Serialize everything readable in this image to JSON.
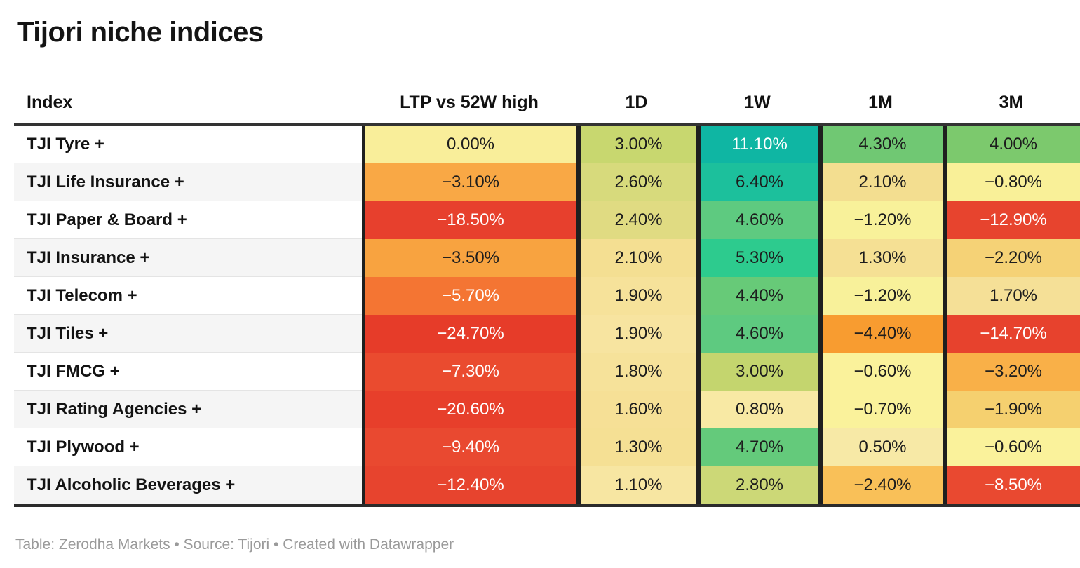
{
  "title": "Tijori niche indices",
  "footer": {
    "text": "Table: Zerodha Markets • Source: Tijori • Created with Datawrapper"
  },
  "table": {
    "columns": [
      "Index",
      "LTP vs 52W high",
      "1D",
      "1W",
      "1M",
      "3M"
    ],
    "rows": [
      {
        "index": "TJI Tyre +",
        "cells": [
          {
            "text": "0.00%",
            "bg": "#f9ee9a"
          },
          {
            "text": "3.00%",
            "bg": "#c8d76f"
          },
          {
            "text": "11.10%",
            "bg": "#0fb6a3",
            "fg": "#ffffff"
          },
          {
            "text": "4.30%",
            "bg": "#70c873"
          },
          {
            "text": "4.00%",
            "bg": "#7cc96d"
          }
        ]
      },
      {
        "index": "TJI Life Insurance +",
        "cells": [
          {
            "text": "−3.10%",
            "bg": "#f9a845"
          },
          {
            "text": "2.60%",
            "bg": "#d7da7c"
          },
          {
            "text": "6.40%",
            "bg": "#1cc09c"
          },
          {
            "text": "2.10%",
            "bg": "#f3de90"
          },
          {
            "text": "−0.80%",
            "bg": "#f9f098"
          }
        ]
      },
      {
        "index": "TJI Paper & Board +",
        "cells": [
          {
            "text": "−18.50%",
            "bg": "#e7402d",
            "fg": "#ffffff"
          },
          {
            "text": "2.40%",
            "bg": "#e0db82"
          },
          {
            "text": "4.60%",
            "bg": "#5eca80"
          },
          {
            "text": "−1.20%",
            "bg": "#f8f19a"
          },
          {
            "text": "−12.90%",
            "bg": "#e7442e",
            "fg": "#ffffff"
          }
        ]
      },
      {
        "index": "TJI Insurance +",
        "cells": [
          {
            "text": "−3.50%",
            "bg": "#f8a340"
          },
          {
            "text": "2.10%",
            "bg": "#f4df92"
          },
          {
            "text": "5.30%",
            "bg": "#2dcb8e"
          },
          {
            "text": "1.30%",
            "bg": "#f5e094"
          },
          {
            "text": "−2.20%",
            "bg": "#f5d276"
          }
        ]
      },
      {
        "index": "TJI Telecom +",
        "cells": [
          {
            "text": "−5.70%",
            "bg": "#f47533",
            "fg": "#ffffff"
          },
          {
            "text": "1.90%",
            "bg": "#f6e29a"
          },
          {
            "text": "4.40%",
            "bg": "#67ca78"
          },
          {
            "text": "−1.20%",
            "bg": "#f8f19a"
          },
          {
            "text": "1.70%",
            "bg": "#f5e097"
          }
        ]
      },
      {
        "index": "TJI Tiles +",
        "cells": [
          {
            "text": "−24.70%",
            "bg": "#e63c29",
            "fg": "#ffffff"
          },
          {
            "text": "1.90%",
            "bg": "#f7e4a0"
          },
          {
            "text": "4.60%",
            "bg": "#5eca80"
          },
          {
            "text": "−4.40%",
            "bg": "#f89c30"
          },
          {
            "text": "−14.70%",
            "bg": "#e7422d",
            "fg": "#ffffff"
          }
        ]
      },
      {
        "index": "TJI FMCG +",
        "cells": [
          {
            "text": "−7.30%",
            "bg": "#ea4b2f",
            "fg": "#ffffff"
          },
          {
            "text": "1.80%",
            "bg": "#f6e29a"
          },
          {
            "text": "3.00%",
            "bg": "#c4d56e"
          },
          {
            "text": "−0.60%",
            "bg": "#faf29b"
          },
          {
            "text": "−3.20%",
            "bg": "#f9b048"
          }
        ]
      },
      {
        "index": "TJI Rating Agencies +",
        "cells": [
          {
            "text": "−20.60%",
            "bg": "#e73f2b",
            "fg": "#ffffff"
          },
          {
            "text": "1.60%",
            "bg": "#f6e096"
          },
          {
            "text": "0.80%",
            "bg": "#f8e9a4"
          },
          {
            "text": "−0.70%",
            "bg": "#faf29b"
          },
          {
            "text": "−1.90%",
            "bg": "#f5d06f"
          }
        ]
      },
      {
        "index": "TJI Plywood +",
        "cells": [
          {
            "text": "−9.40%",
            "bg": "#e94930",
            "fg": "#ffffff"
          },
          {
            "text": "1.30%",
            "bg": "#f5e094"
          },
          {
            "text": "4.70%",
            "bg": "#64ca7b"
          },
          {
            "text": "0.50%",
            "bg": "#f7e9a6"
          },
          {
            "text": "−0.60%",
            "bg": "#faf29b"
          }
        ]
      },
      {
        "index": "TJI Alcoholic Beverages +",
        "cells": [
          {
            "text": "−12.40%",
            "bg": "#e7442e",
            "fg": "#ffffff"
          },
          {
            "text": "1.10%",
            "bg": "#f7e6a2"
          },
          {
            "text": "2.80%",
            "bg": "#ccd877"
          },
          {
            "text": "−2.40%",
            "bg": "#f9c058"
          },
          {
            "text": "−8.50%",
            "bg": "#e94930",
            "fg": "#ffffff"
          }
        ]
      }
    ]
  },
  "chart_data": {
    "type": "table",
    "title": "Tijori niche indices",
    "columns": [
      "Index",
      "LTP vs 52W high",
      "1D",
      "1W",
      "1M",
      "3M"
    ],
    "value_unit": "%",
    "rows": [
      [
        "TJI Tyre +",
        0.0,
        3.0,
        11.1,
        4.3,
        4.0
      ],
      [
        "TJI Life Insurance +",
        -3.1,
        2.6,
        6.4,
        2.1,
        -0.8
      ],
      [
        "TJI Paper & Board +",
        -18.5,
        2.4,
        4.6,
        -1.2,
        -12.9
      ],
      [
        "TJI Insurance +",
        -3.5,
        2.1,
        5.3,
        1.3,
        -2.2
      ],
      [
        "TJI Telecom +",
        -5.7,
        1.9,
        4.4,
        -1.2,
        1.7
      ],
      [
        "TJI Tiles +",
        -24.7,
        1.9,
        4.6,
        -4.4,
        -14.7
      ],
      [
        "TJI FMCG +",
        -7.3,
        1.8,
        3.0,
        -0.6,
        -3.2
      ],
      [
        "TJI Rating Agencies +",
        -20.6,
        1.6,
        0.8,
        -0.7,
        -1.9
      ],
      [
        "TJI Plywood +",
        -9.4,
        1.3,
        4.7,
        0.5,
        -0.6
      ],
      [
        "TJI Alcoholic Beverages +",
        -12.4,
        1.1,
        2.8,
        -2.4,
        -8.5
      ]
    ],
    "heatmap": {
      "negative_color": "#e7402d",
      "neutral_color": "#f9f098",
      "positive_color": "#0fb6a3"
    },
    "notes": "Table: Zerodha Markets • Source: Tijori • Created with Datawrapper"
  }
}
